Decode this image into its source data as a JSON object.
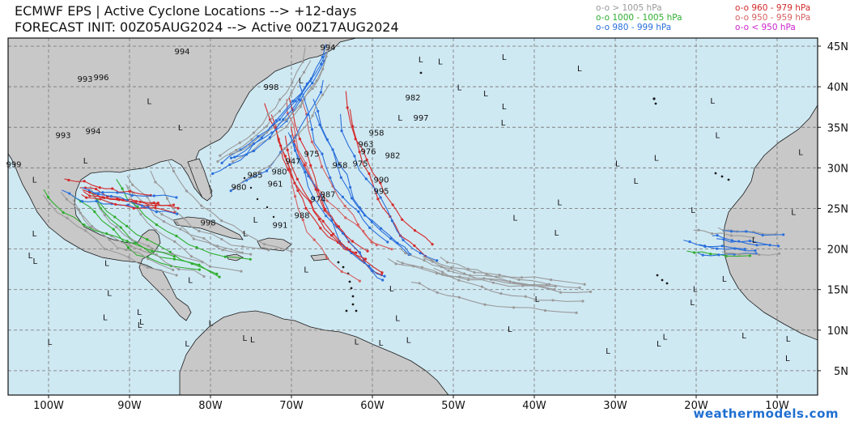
{
  "title_line1": "ECMWF EPS | Active Cyclone Locations --> +12-days",
  "title_line2": "FORECAST INIT: 00Z05AUG2024 --> Active 00Z17AUG2024",
  "legend": [
    {
      "text": "o-o > 1005 hPa",
      "color": "#9a9a9a"
    },
    {
      "text": "o-o 1000 - 1005 hPa",
      "color": "#2fae2f"
    },
    {
      "text": "o-o 980 - 999 hPa",
      "color": "#2a6fdb"
    },
    {
      "text": "o-o 960 - 979 hPa",
      "color": "#d42a2a"
    },
    {
      "text": "o-o 950 - 959 hPa",
      "color": "#d66060"
    },
    {
      "text": "o-o < 950 hPa",
      "color": "#cc22cc"
    }
  ],
  "credit": "weathermodels.com",
  "lon_labels": [
    "100W",
    "90W",
    "80W",
    "70W",
    "60W",
    "50W",
    "40W",
    "30W",
    "20W",
    "10W"
  ],
  "lat_labels": [
    "45N",
    "40N",
    "35N",
    "30N",
    "25N",
    "20N",
    "15N",
    "10N",
    "5N"
  ],
  "colors": {
    "ocean": "#cfe9f3",
    "land": "#c8c8c8",
    "coast": "#1a1a1a",
    "grid": "#808080"
  },
  "pressure_labels": [
    {
      "text": "994",
      "lon": -83.5,
      "lat": 44.0
    },
    {
      "text": "994",
      "lon": -65.5,
      "lat": 44.5
    },
    {
      "text": "993",
      "lon": -95.5,
      "lat": 40.6
    },
    {
      "text": "996",
      "lon": -93.5,
      "lat": 40.8
    },
    {
      "text": "998",
      "lon": -72.5,
      "lat": 39.6
    },
    {
      "text": "982",
      "lon": -55.0,
      "lat": 38.3
    },
    {
      "text": "997",
      "lon": -54.0,
      "lat": 35.8
    },
    {
      "text": "993",
      "lon": -98.2,
      "lat": 33.7
    },
    {
      "text": "994",
      "lon": -94.5,
      "lat": 34.2
    },
    {
      "text": "958",
      "lon": -59.5,
      "lat": 34.0
    },
    {
      "text": "963",
      "lon": -60.8,
      "lat": 32.6
    },
    {
      "text": "976",
      "lon": -60.5,
      "lat": 31.7
    },
    {
      "text": "982",
      "lon": -57.5,
      "lat": 31.2
    },
    {
      "text": "975",
      "lon": -67.5,
      "lat": 31.4
    },
    {
      "text": "947",
      "lon": -69.8,
      "lat": 30.5
    },
    {
      "text": "958",
      "lon": -64.0,
      "lat": 30.0
    },
    {
      "text": "975",
      "lon": -61.5,
      "lat": 30.2
    },
    {
      "text": "980",
      "lon": -71.5,
      "lat": 29.2
    },
    {
      "text": "985",
      "lon": -74.5,
      "lat": 28.8
    },
    {
      "text": "990",
      "lon": -58.9,
      "lat": 28.2
    },
    {
      "text": "961",
      "lon": -72.0,
      "lat": 27.7
    },
    {
      "text": "980",
      "lon": -76.5,
      "lat": 27.3
    },
    {
      "text": "995",
      "lon": -58.9,
      "lat": 26.8
    },
    {
      "text": "987",
      "lon": -65.5,
      "lat": 26.4
    },
    {
      "text": "974",
      "lon": -66.7,
      "lat": 25.8
    },
    {
      "text": "988",
      "lon": -68.7,
      "lat": 23.8
    },
    {
      "text": "991",
      "lon": -71.4,
      "lat": 22.6
    },
    {
      "text": "998",
      "lon": -80.3,
      "lat": 22.9
    },
    {
      "text": "999",
      "lon": -104.3,
      "lat": 30.1
    }
  ]
}
